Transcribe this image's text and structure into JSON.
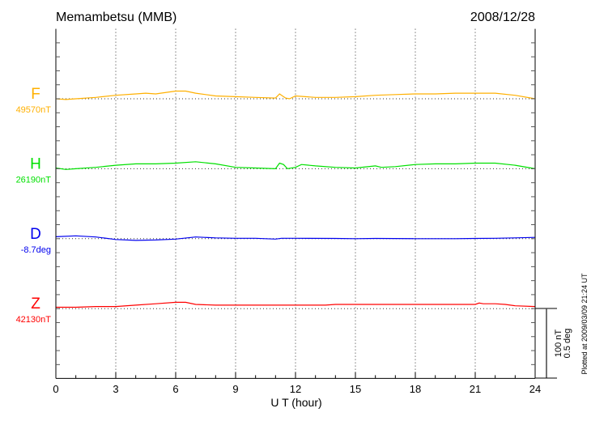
{
  "chart_data": {
    "type": "line",
    "title": "Memambetsu (MMB)",
    "date": "2008/12/28",
    "xlabel": "U T (hour)",
    "xlim": [
      0,
      24
    ],
    "xticks": [
      "0",
      "3",
      "6",
      "9",
      "12",
      "15",
      "18",
      "21",
      "24"
    ],
    "grid": "dotted vertical lines every 3 hours, dotted baseline per series",
    "scale_bar": {
      "line1": "100 nT",
      "line2": "0.5 deg"
    },
    "footer": "Plotted at 2009/03/09 21:24 UT",
    "series": [
      {
        "name": "F",
        "baseline_label": "49570nT",
        "color": "#ffb000",
        "unit": "nT",
        "points": [
          [
            0,
            0
          ],
          [
            0.5,
            -1
          ],
          [
            1,
            0
          ],
          [
            2,
            2
          ],
          [
            3,
            5
          ],
          [
            4,
            7
          ],
          [
            4.5,
            8
          ],
          [
            5,
            7
          ],
          [
            6,
            11
          ],
          [
            6.5,
            11
          ],
          [
            7,
            8
          ],
          [
            8,
            4
          ],
          [
            9,
            3
          ],
          [
            10,
            2
          ],
          [
            11,
            1
          ],
          [
            11.2,
            7
          ],
          [
            11.5,
            1
          ],
          [
            11.7,
            0
          ],
          [
            12,
            4
          ],
          [
            13,
            2
          ],
          [
            14,
            2
          ],
          [
            15,
            3
          ],
          [
            16,
            5
          ],
          [
            17,
            6
          ],
          [
            18,
            7
          ],
          [
            19,
            7
          ],
          [
            20,
            8
          ],
          [
            21,
            8
          ],
          [
            22,
            8
          ],
          [
            23,
            5
          ],
          [
            24,
            0
          ]
        ]
      },
      {
        "name": "H",
        "baseline_label": "26190nT",
        "color": "#00e000",
        "unit": "nT",
        "points": [
          [
            0,
            1
          ],
          [
            0.5,
            -1
          ],
          [
            1,
            0
          ],
          [
            2,
            2
          ],
          [
            3,
            5
          ],
          [
            4,
            7
          ],
          [
            5,
            7
          ],
          [
            6,
            8
          ],
          [
            7,
            10
          ],
          [
            8,
            7
          ],
          [
            9,
            2
          ],
          [
            10,
            1
          ],
          [
            11,
            0
          ],
          [
            11.2,
            8
          ],
          [
            11.4,
            6
          ],
          [
            11.6,
            0
          ],
          [
            12,
            2
          ],
          [
            12.3,
            6
          ],
          [
            13,
            4
          ],
          [
            14,
            2
          ],
          [
            15,
            1
          ],
          [
            16,
            4
          ],
          [
            16.3,
            2
          ],
          [
            17,
            3
          ],
          [
            18,
            6
          ],
          [
            19,
            7
          ],
          [
            20,
            7
          ],
          [
            21,
            8
          ],
          [
            22,
            8
          ],
          [
            23,
            5
          ],
          [
            24,
            0
          ]
        ]
      },
      {
        "name": "D",
        "baseline_label": "-8.7deg",
        "color": "#0000ee",
        "unit": "deg",
        "points": [
          [
            0,
            0.014
          ],
          [
            1,
            0.02
          ],
          [
            2,
            0.012
          ],
          [
            3,
            -0.006
          ],
          [
            4,
            -0.012
          ],
          [
            5,
            -0.009
          ],
          [
            6,
            -0.003
          ],
          [
            7,
            0.012
          ],
          [
            8,
            0.006
          ],
          [
            9,
            0.003
          ],
          [
            10,
            0.003
          ],
          [
            11,
            -0.003
          ],
          [
            11.3,
            0.003
          ],
          [
            12,
            0.003
          ],
          [
            14,
            0.002
          ],
          [
            15,
            0
          ],
          [
            16,
            0.002
          ],
          [
            18,
            0
          ],
          [
            20,
            0
          ],
          [
            21,
            0.002
          ],
          [
            22,
            0.003
          ],
          [
            23,
            0.006
          ],
          [
            24,
            0.009
          ]
        ]
      },
      {
        "name": "Z",
        "baseline_label": "42130nT",
        "color": "#ff0000",
        "unit": "nT",
        "points": [
          [
            0,
            2
          ],
          [
            1,
            2
          ],
          [
            2,
            3
          ],
          [
            3,
            3
          ],
          [
            4,
            5
          ],
          [
            5,
            7
          ],
          [
            6,
            9
          ],
          [
            6.5,
            9
          ],
          [
            7,
            6
          ],
          [
            8,
            5
          ],
          [
            12,
            5
          ],
          [
            13.5,
            5
          ],
          [
            14,
            6
          ],
          [
            18,
            6
          ],
          [
            21,
            6
          ],
          [
            21.2,
            8
          ],
          [
            21.4,
            7
          ],
          [
            22,
            7
          ],
          [
            22.5,
            6
          ],
          [
            23,
            4
          ],
          [
            24,
            3
          ]
        ]
      }
    ]
  }
}
